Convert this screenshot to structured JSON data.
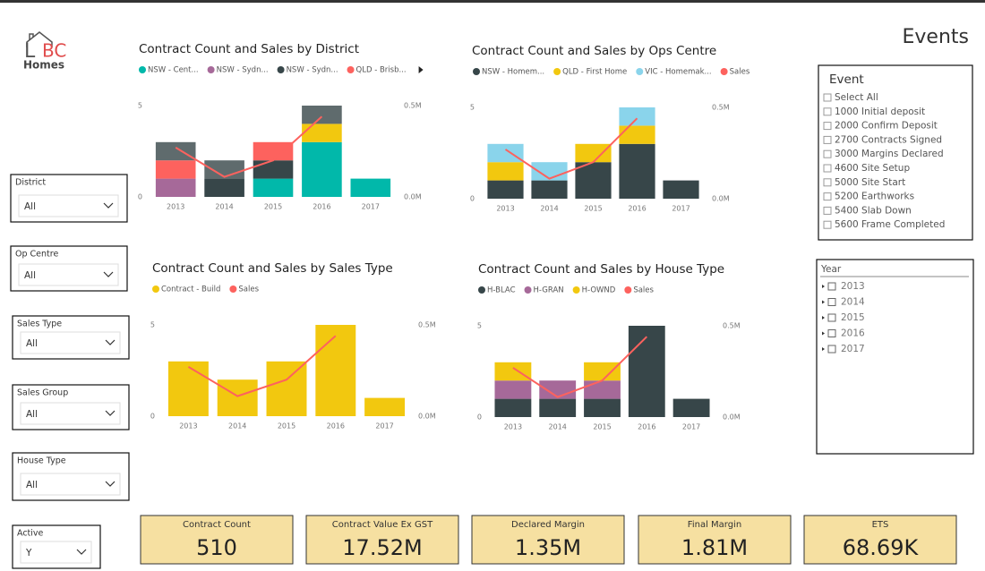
{
  "header": {
    "logo": {
      "mark": "BC",
      "name": "Homes"
    },
    "title": "Events"
  },
  "slicers": [
    {
      "label": "District",
      "value": "All"
    },
    {
      "label": "Op Centre",
      "value": "All"
    },
    {
      "label": "Sales Type",
      "value": "All"
    },
    {
      "label": "Sales Group",
      "value": "All"
    },
    {
      "label": "House Type",
      "value": "All"
    },
    {
      "label": "Active",
      "value": "Y"
    }
  ],
  "event_list": {
    "title": "Event",
    "items": [
      "Select All",
      "1000 Initial deposit",
      "2000 Confirm Deposit",
      "2700 Contracts Signed",
      "3000 Margins Declared",
      "4600 Site Setup",
      "5000 Site Start",
      "5200 Earthworks",
      "5400 Slab Down",
      "5600 Frame Completed"
    ]
  },
  "year_list": {
    "title": "Year",
    "items": [
      "2013",
      "2014",
      "2015",
      "2016",
      "2017"
    ]
  },
  "kpis": [
    {
      "label": "Contract Count",
      "value": "510"
    },
    {
      "label": "Contract Value Ex GST",
      "value": "17.52M"
    },
    {
      "label": "Declared Margin",
      "value": "1.35M"
    },
    {
      "label": "Final Margin",
      "value": "1.81M"
    },
    {
      "label": "ETS",
      "value": "68.69K"
    }
  ],
  "chart_data": [
    {
      "type": "bar",
      "title": "Contract Count and Sales by District",
      "categories": [
        "2013",
        "2014",
        "2015",
        "2016",
        "2017"
      ],
      "ylim": [
        0,
        5
      ],
      "yticks": [
        0,
        5
      ],
      "y2lim": [
        0,
        500000
      ],
      "y2ticks": [
        {
          "value": 0,
          "label": "0.0M"
        },
        {
          "value": 500000,
          "label": "0.5M"
        }
      ],
      "series": [
        {
          "name": "NSW - Cent...",
          "color": "#01b8aa",
          "values": [
            null,
            null,
            1,
            3,
            1
          ]
        },
        {
          "name": "NSW - Sydn...",
          "color": "#a66999",
          "values": [
            1,
            null,
            null,
            null,
            null
          ]
        },
        {
          "name": "NSW - Sydn...",
          "color": "#374649",
          "values": [
            null,
            1,
            1,
            null,
            null
          ]
        },
        {
          "name": "QLD - Brisb...",
          "color": "#fd625e",
          "values": [
            1,
            null,
            1,
            null,
            null
          ]
        },
        {
          "name": null,
          "color": "#f2c80f",
          "values": [
            null,
            null,
            null,
            1,
            null
          ]
        },
        {
          "name": null,
          "color": "#5f6b6d",
          "values": [
            1,
            1,
            null,
            1,
            null
          ]
        },
        {
          "name": null,
          "color": "#fd625e",
          "axis": "y2",
          "values": [
            270000,
            110000,
            200000,
            440000,
            null
          ]
        }
      ]
    },
    {
      "type": "bar",
      "title": "Contract Count and Sales by Ops Centre",
      "categories": [
        "2013",
        "2014",
        "2015",
        "2016",
        "2017"
      ],
      "ylim": [
        0,
        5
      ],
      "yticks": [
        0,
        5
      ],
      "y2lim": [
        0,
        500000
      ],
      "y2ticks": [
        {
          "value": 0,
          "label": "0.0M"
        },
        {
          "value": 500000,
          "label": "0.5M"
        }
      ],
      "series": [
        {
          "name": "NSW - Homem...",
          "color": "#374649",
          "values": [
            1,
            1,
            2,
            3,
            1
          ]
        },
        {
          "name": "QLD - First Home",
          "color": "#f2c80f",
          "values": [
            1,
            null,
            1,
            1,
            null
          ]
        },
        {
          "name": "VIC - Homemak...",
          "color": "#8ad4eb",
          "values": [
            1,
            1,
            null,
            1,
            null
          ]
        },
        {
          "name": "Sales",
          "color": "#fd625e",
          "axis": "y2",
          "values": [
            270000,
            110000,
            200000,
            440000,
            null
          ]
        }
      ]
    },
    {
      "type": "bar",
      "title": "Contract Count and Sales by Sales Type",
      "categories": [
        "2013",
        "2014",
        "2015",
        "2016",
        "2017"
      ],
      "ylim": [
        0,
        5
      ],
      "yticks": [
        0,
        5
      ],
      "y2lim": [
        0,
        500000
      ],
      "y2ticks": [
        {
          "value": 0,
          "label": "0.0M"
        },
        {
          "value": 500000,
          "label": "0.5M"
        }
      ],
      "series": [
        {
          "name": "Contract - Build",
          "color": "#f2c80f",
          "values": [
            3,
            2,
            3,
            5,
            1
          ]
        },
        {
          "name": "Sales",
          "color": "#fd625e",
          "axis": "y2",
          "values": [
            270000,
            110000,
            200000,
            440000,
            null
          ]
        }
      ]
    },
    {
      "type": "bar",
      "title": "Contract Count and Sales by House Type",
      "categories": [
        "2013",
        "2014",
        "2015",
        "2016",
        "2017"
      ],
      "ylim": [
        0,
        5
      ],
      "yticks": [
        0,
        5
      ],
      "y2lim": [
        0,
        500000
      ],
      "y2ticks": [
        {
          "value": 0,
          "label": "0.0M"
        },
        {
          "value": 500000,
          "label": "0.5M"
        }
      ],
      "series": [
        {
          "name": "H-BLAC",
          "color": "#374649",
          "values": [
            1,
            1,
            1,
            5,
            1
          ]
        },
        {
          "name": "H-GRAN",
          "color": "#a66999",
          "values": [
            1,
            1,
            1,
            null,
            null
          ]
        },
        {
          "name": "H-OWND",
          "color": "#f2c80f",
          "values": [
            1,
            null,
            1,
            null,
            null
          ]
        },
        {
          "name": "Sales",
          "color": "#fd625e",
          "axis": "y2",
          "values": [
            270000,
            110000,
            200000,
            440000,
            null
          ]
        }
      ]
    }
  ]
}
